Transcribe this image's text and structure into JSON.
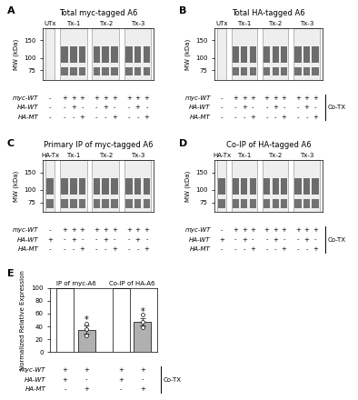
{
  "panels": [
    {
      "letter": "A",
      "title": "Total myc-tagged A6",
      "y_label": "MW (kDa)",
      "ylim": [
        60,
        200
      ],
      "yticks": [
        75,
        100,
        150
      ],
      "log": "y",
      "lane_groups": [
        "UTx",
        "Tx-1",
        "Tx-2",
        "Tx-3"
      ],
      "rows": [
        {
          "name": "myc-WT",
          "marks": [
            "-",
            "+",
            "+",
            "+",
            "+",
            "+",
            "+",
            "+",
            "+",
            "+"
          ]
        },
        {
          "name": "HA-WT",
          "marks": [
            "-",
            "-",
            "+",
            "-",
            "-",
            "+",
            "-",
            "-",
            "+",
            "-"
          ]
        },
        {
          "name": "HA-MT",
          "marks": [
            "-",
            "-",
            "-",
            "+",
            "-",
            "-",
            "+",
            "-",
            "-",
            "+"
          ]
        }
      ]
    },
    {
      "letter": "B",
      "title": "Total HA-tagged A6",
      "y_label": "MW (kDa)",
      "ylim": [
        60,
        200
      ],
      "yticks": [
        75,
        100,
        150
      ],
      "log": "y",
      "lane_groups": [
        "UTx",
        "Tx-1",
        "Tx-2",
        "Tx-3"
      ],
      "bracket_label": "Co-TX",
      "rows": [
        {
          "name": "myc-WT",
          "marks": [
            "-",
            "+",
            "+",
            "+",
            "+",
            "+",
            "+",
            "+",
            "+",
            "+"
          ]
        },
        {
          "name": "HA-WT",
          "marks": [
            "-",
            "-",
            "+",
            "-",
            "-",
            "+",
            "-",
            "-",
            "+",
            "-"
          ]
        },
        {
          "name": "HA-MT",
          "marks": [
            "-",
            "-",
            "-",
            "+",
            "-",
            "-",
            "+",
            "-",
            "-",
            "+"
          ]
        }
      ]
    },
    {
      "letter": "C",
      "title": "Primary IP of myc-tagged A6",
      "y_label": "MW (kDa)",
      "ylim": [
        60,
        200
      ],
      "yticks": [
        75,
        100,
        150
      ],
      "log": "y",
      "lane_groups": [
        "HA-Tx",
        "Tx-1",
        "Tx-2",
        "Tx-3"
      ],
      "rows": [
        {
          "name": "myc-WT",
          "marks": [
            "-",
            "+",
            "+",
            "+",
            "+",
            "+",
            "+",
            "+",
            "+",
            "+"
          ]
        },
        {
          "name": "HA-WT",
          "marks": [
            "+",
            "-",
            "+",
            "-",
            "-",
            "+",
            "-",
            "-",
            "+",
            "-"
          ]
        },
        {
          "name": "HA-MT",
          "marks": [
            "-",
            "-",
            "-",
            "+",
            "-",
            "-",
            "+",
            "-",
            "-",
            "+"
          ]
        }
      ]
    },
    {
      "letter": "D",
      "title": "Co-IP of HA-tagged A6",
      "y_label": "MW (kDa)",
      "ylim": [
        60,
        200
      ],
      "yticks": [
        75,
        100,
        150
      ],
      "log": "y",
      "lane_groups": [
        "HA-Tx",
        "Tx-1",
        "Tx-2",
        "Tx-3"
      ],
      "bracket_label": "Co-TX",
      "rows": [
        {
          "name": "myc-WT",
          "marks": [
            "-",
            "+",
            "+",
            "+",
            "+",
            "+",
            "+",
            "+",
            "+",
            "+"
          ]
        },
        {
          "name": "HA-WT",
          "marks": [
            "+",
            "-",
            "+",
            "-",
            "-",
            "+",
            "-",
            "-",
            "+",
            "-"
          ]
        },
        {
          "name": "HA-MT",
          "marks": [
            "-",
            "-",
            "-",
            "+",
            "-",
            "-",
            "+",
            "-",
            "-",
            "+"
          ]
        }
      ]
    }
  ],
  "chart_data": {
    "type": "bar",
    "letter": "E",
    "y_label": "Normalized Relative Expression",
    "categories": [
      "IP of myc-A6",
      "Co-IP of HA-A6"
    ],
    "ylim": [
      0,
      100
    ],
    "yticks": [
      0,
      20,
      40,
      60,
      80,
      100
    ],
    "series": [
      {
        "color": "#ffffff",
        "values": [
          100,
          100
        ]
      },
      {
        "color": "#b0b0b0",
        "values": [
          35,
          47
        ],
        "errors": [
          6,
          6
        ],
        "points": [
          [
            26,
            36,
            44
          ],
          [
            38,
            47,
            58
          ]
        ],
        "significance": [
          "*",
          "*"
        ]
      }
    ],
    "bracket_label": "Co-TX",
    "condition_rows": [
      {
        "name": "myc-WT",
        "marks": [
          "+",
          "+",
          "+",
          "+"
        ]
      },
      {
        "name": "HA-WT",
        "marks": [
          "+",
          "-",
          "+",
          "-"
        ]
      },
      {
        "name": "HA-MT",
        "marks": [
          "-",
          "+",
          "-",
          "+"
        ]
      }
    ]
  }
}
